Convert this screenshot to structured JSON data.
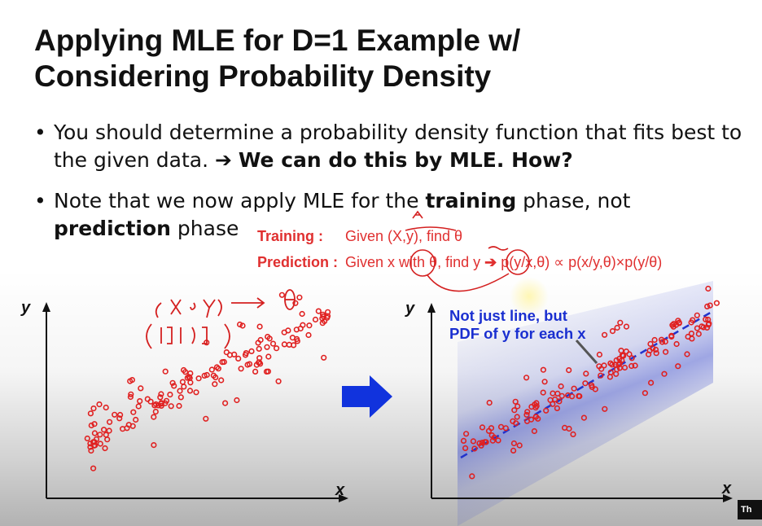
{
  "slide": {
    "title_line1": "Applying MLE for D=1 Example w/",
    "title_line2": "Considering Probability Density",
    "bullet1_a": "You should determine a probability density function that fits best to the given data.",
    "bullet1_b": "We can do this by MLE. How?",
    "bullet2_a": "Note that we now apply MLE for the ",
    "bullet2_b": "training",
    "bullet2_c": " phase, not",
    "bullet2_d": "prediction",
    "bullet2_e": " phase"
  },
  "notes": {
    "training_label": "Training :",
    "training_text": "Given (X,y), find θ",
    "prediction_label": "Prediction :",
    "prediction_text": "Given x with θ, find y",
    "formula": "p(y/x,θ) ∝ p(x/y,θ)×p(y/θ)"
  },
  "figures": {
    "left_y": "y",
    "left_x": "x",
    "right_y": "y",
    "right_x": "x",
    "callout_line1": "Not just line, but",
    "callout_line2": "PDF of y for each x"
  },
  "colors": {
    "points": "#e02020",
    "band": "#3344cc",
    "arrow": "#1133dd",
    "callout": "#1a2fd0"
  },
  "player": {
    "badge": "Th"
  }
}
